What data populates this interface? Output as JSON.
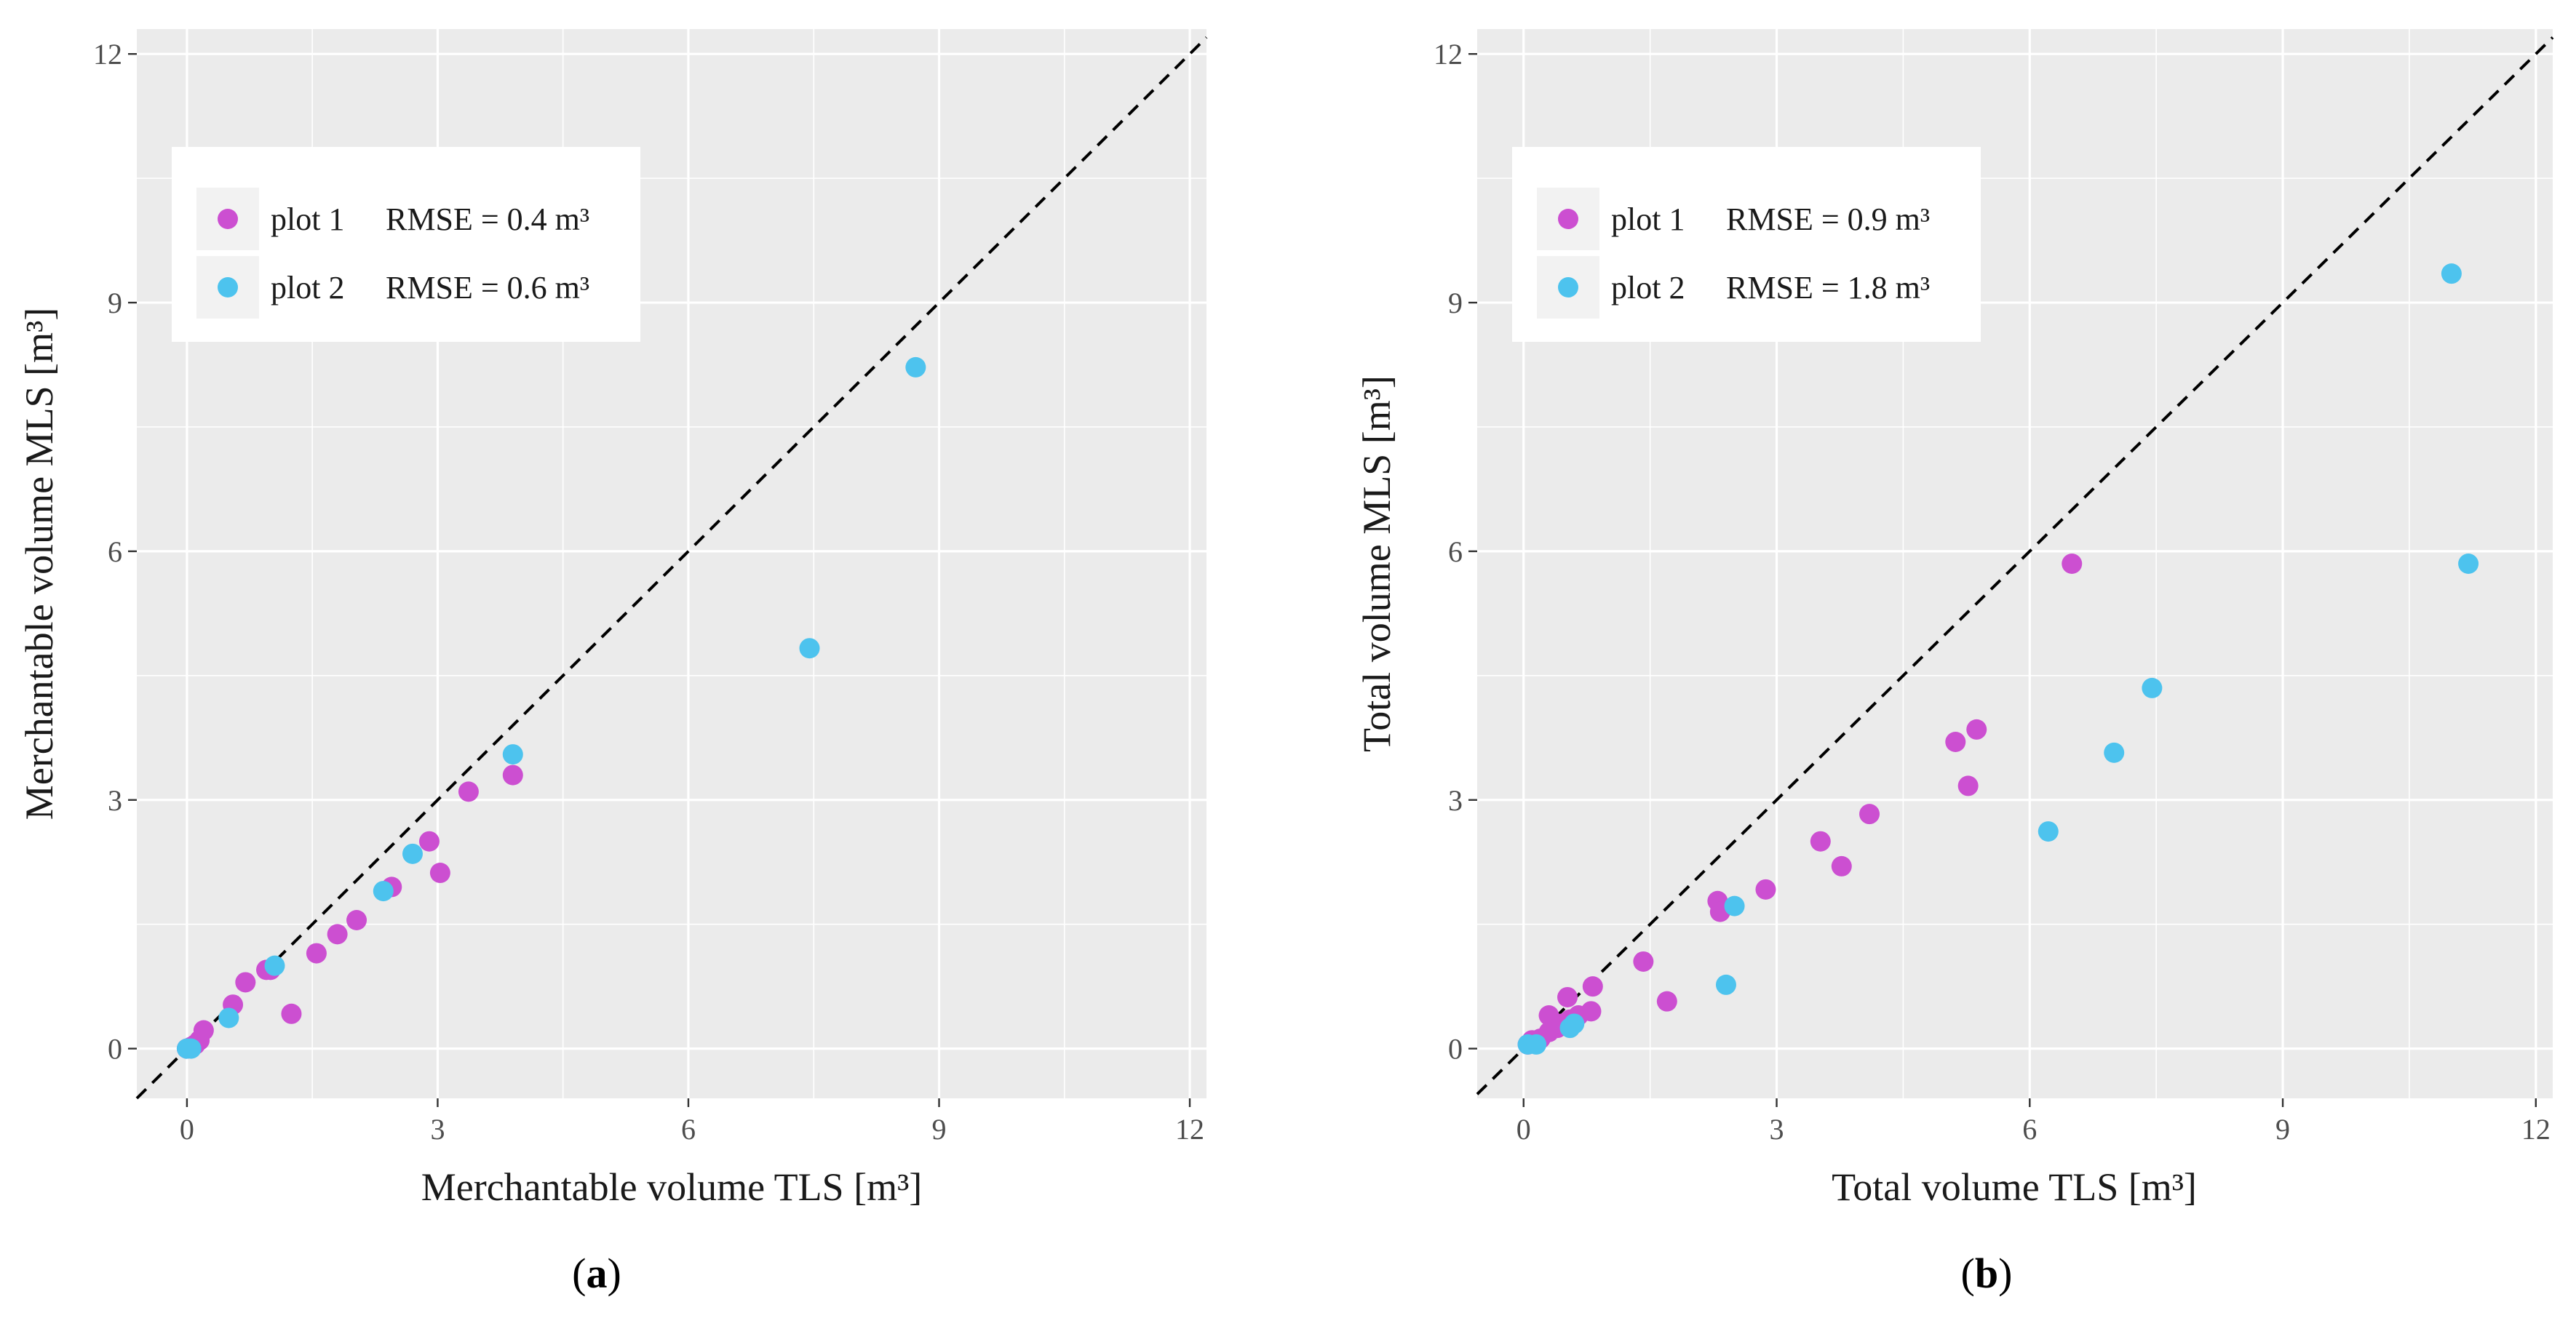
{
  "chart_data": [
    {
      "type": "scatter",
      "panel_label": "a",
      "xlabel": "Merchantable volume TLS [m³]",
      "ylabel": "Merchantable volume MLS [m³]",
      "xlim": [
        -0.6,
        12.2
      ],
      "ylim": [
        -0.6,
        12.3
      ],
      "ticks": [
        0,
        3,
        6,
        9,
        12
      ],
      "tick_labels": [
        "0",
        "3",
        "6",
        "9",
        "12"
      ],
      "reference_line": "1:1 dashed",
      "legend_position": "top-left",
      "series": [
        {
          "name": "plot 1",
          "color": "#cc4fd1",
          "legend_label": "plot 1",
          "legend_stat": "RMSE = 0.4 m³",
          "points": [
            [
              0.0,
              0.0
            ],
            [
              0.05,
              0.02
            ],
            [
              0.1,
              0.05
            ],
            [
              0.15,
              0.1
            ],
            [
              0.2,
              0.22
            ],
            [
              0.55,
              0.53
            ],
            [
              0.7,
              0.8
            ],
            [
              0.95,
              0.95
            ],
            [
              1.0,
              0.95
            ],
            [
              1.25,
              0.42
            ],
            [
              1.55,
              1.15
            ],
            [
              1.8,
              1.38
            ],
            [
              2.03,
              1.55
            ],
            [
              2.45,
              1.95
            ],
            [
              2.9,
              2.5
            ],
            [
              3.03,
              2.12
            ],
            [
              3.37,
              3.1
            ],
            [
              3.9,
              3.3
            ]
          ]
        },
        {
          "name": "plot 2",
          "color": "#4dc3ee",
          "legend_label": "plot 2",
          "legend_stat": "RMSE = 0.6 m³",
          "points": [
            [
              0.0,
              0.0
            ],
            [
              0.05,
              0.0
            ],
            [
              0.5,
              0.37
            ],
            [
              1.05,
              1.0
            ],
            [
              2.35,
              1.9
            ],
            [
              2.7,
              2.35
            ],
            [
              3.9,
              3.55
            ],
            [
              7.45,
              4.83
            ],
            [
              8.72,
              8.22
            ]
          ]
        }
      ]
    },
    {
      "type": "scatter",
      "panel_label": "b",
      "xlabel": "Total volume TLS [m³]",
      "ylabel": "Total volume MLS [m³]",
      "xlim": [
        -0.55,
        12.2
      ],
      "ylim": [
        -0.6,
        12.3
      ],
      "ticks": [
        0,
        3,
        6,
        9,
        12
      ],
      "tick_labels": [
        "0",
        "3",
        "6",
        "9",
        "12"
      ],
      "reference_line": "1:1 dashed",
      "legend_position": "top-left",
      "series": [
        {
          "name": "plot 1",
          "color": "#cc4fd1",
          "legend_label": "plot 1",
          "legend_stat": "RMSE = 0.9 m³",
          "points": [
            [
              0.05,
              0.05
            ],
            [
              0.1,
              0.1
            ],
            [
              0.2,
              0.12
            ],
            [
              0.3,
              0.4
            ],
            [
              0.3,
              0.2
            ],
            [
              0.4,
              0.25
            ],
            [
              0.45,
              0.3
            ],
            [
              0.52,
              0.62
            ],
            [
              0.55,
              0.35
            ],
            [
              0.65,
              0.4
            ],
            [
              0.8,
              0.45
            ],
            [
              0.82,
              0.75
            ],
            [
              1.42,
              1.05
            ],
            [
              1.7,
              0.57
            ],
            [
              2.3,
              1.78
            ],
            [
              2.33,
              1.65
            ],
            [
              2.87,
              1.92
            ],
            [
              3.52,
              2.5
            ],
            [
              3.77,
              2.2
            ],
            [
              4.1,
              2.83
            ],
            [
              5.12,
              3.7
            ],
            [
              5.27,
              3.17
            ],
            [
              5.37,
              3.85
            ],
            [
              6.5,
              5.85
            ]
          ]
        },
        {
          "name": "plot 2",
          "color": "#4dc3ee",
          "legend_label": "plot 2",
          "legend_stat": "RMSE = 1.8 m³",
          "points": [
            [
              0.05,
              0.05
            ],
            [
              0.15,
              0.05
            ],
            [
              0.55,
              0.25
            ],
            [
              0.6,
              0.3
            ],
            [
              2.4,
              0.77
            ],
            [
              2.5,
              1.72
            ],
            [
              6.22,
              2.62
            ],
            [
              7.0,
              3.57
            ],
            [
              7.45,
              4.35
            ],
            [
              11.0,
              9.35
            ],
            [
              11.2,
              5.85
            ]
          ]
        }
      ]
    }
  ]
}
